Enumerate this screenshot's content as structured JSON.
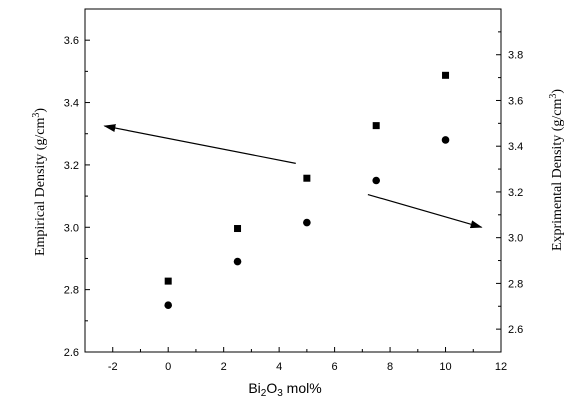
{
  "chart_data": {
    "type": "scatter",
    "xlabel": {
      "pre": "Bi",
      "sub1": "2",
      "mid": "O",
      "sub2": "3",
      "post": " mol%"
    },
    "ylabel_left": {
      "pre": "Empirical Density (g/cm",
      "sup": "3",
      "post": ")"
    },
    "ylabel_right": {
      "pre": "Exprimental Density (g/cm",
      "sup": "3",
      "post": ")"
    },
    "xlim": [
      -3,
      12
    ],
    "ylim_left": [
      2.6,
      3.7
    ],
    "ylim_right": [
      2.5,
      4.0
    ],
    "x_ticks": [
      -2,
      0,
      2,
      4,
      6,
      8,
      10,
      12
    ],
    "y_left_ticks": [
      "2.6",
      "2.8",
      "3.0",
      "3.2",
      "3.4",
      "3.6"
    ],
    "y_right_ticks": [
      "2.6",
      "2.8",
      "3.0",
      "3.2",
      "3.4",
      "3.6",
      "3.8"
    ],
    "series": [
      {
        "marker": "circle",
        "axis": "left",
        "x": [
          0,
          2.5,
          5,
          7.5,
          10
        ],
        "y": [
          2.75,
          2.89,
          3.015,
          3.15,
          3.28
        ]
      },
      {
        "marker": "square",
        "axis": "right",
        "x": [
          0,
          2.5,
          5,
          7.5,
          10
        ],
        "y": [
          2.81,
          3.04,
          3.26,
          3.49,
          3.71
        ]
      }
    ],
    "annotations": [
      {
        "type": "arrow",
        "axis": "left",
        "from": [
          4.6,
          3.205
        ],
        "to": [
          -2.3,
          3.325
        ]
      },
      {
        "type": "arrow",
        "axis": "left",
        "from": [
          7.2,
          3.105
        ],
        "to": [
          11.3,
          3.0
        ]
      }
    ],
    "grid": false
  }
}
